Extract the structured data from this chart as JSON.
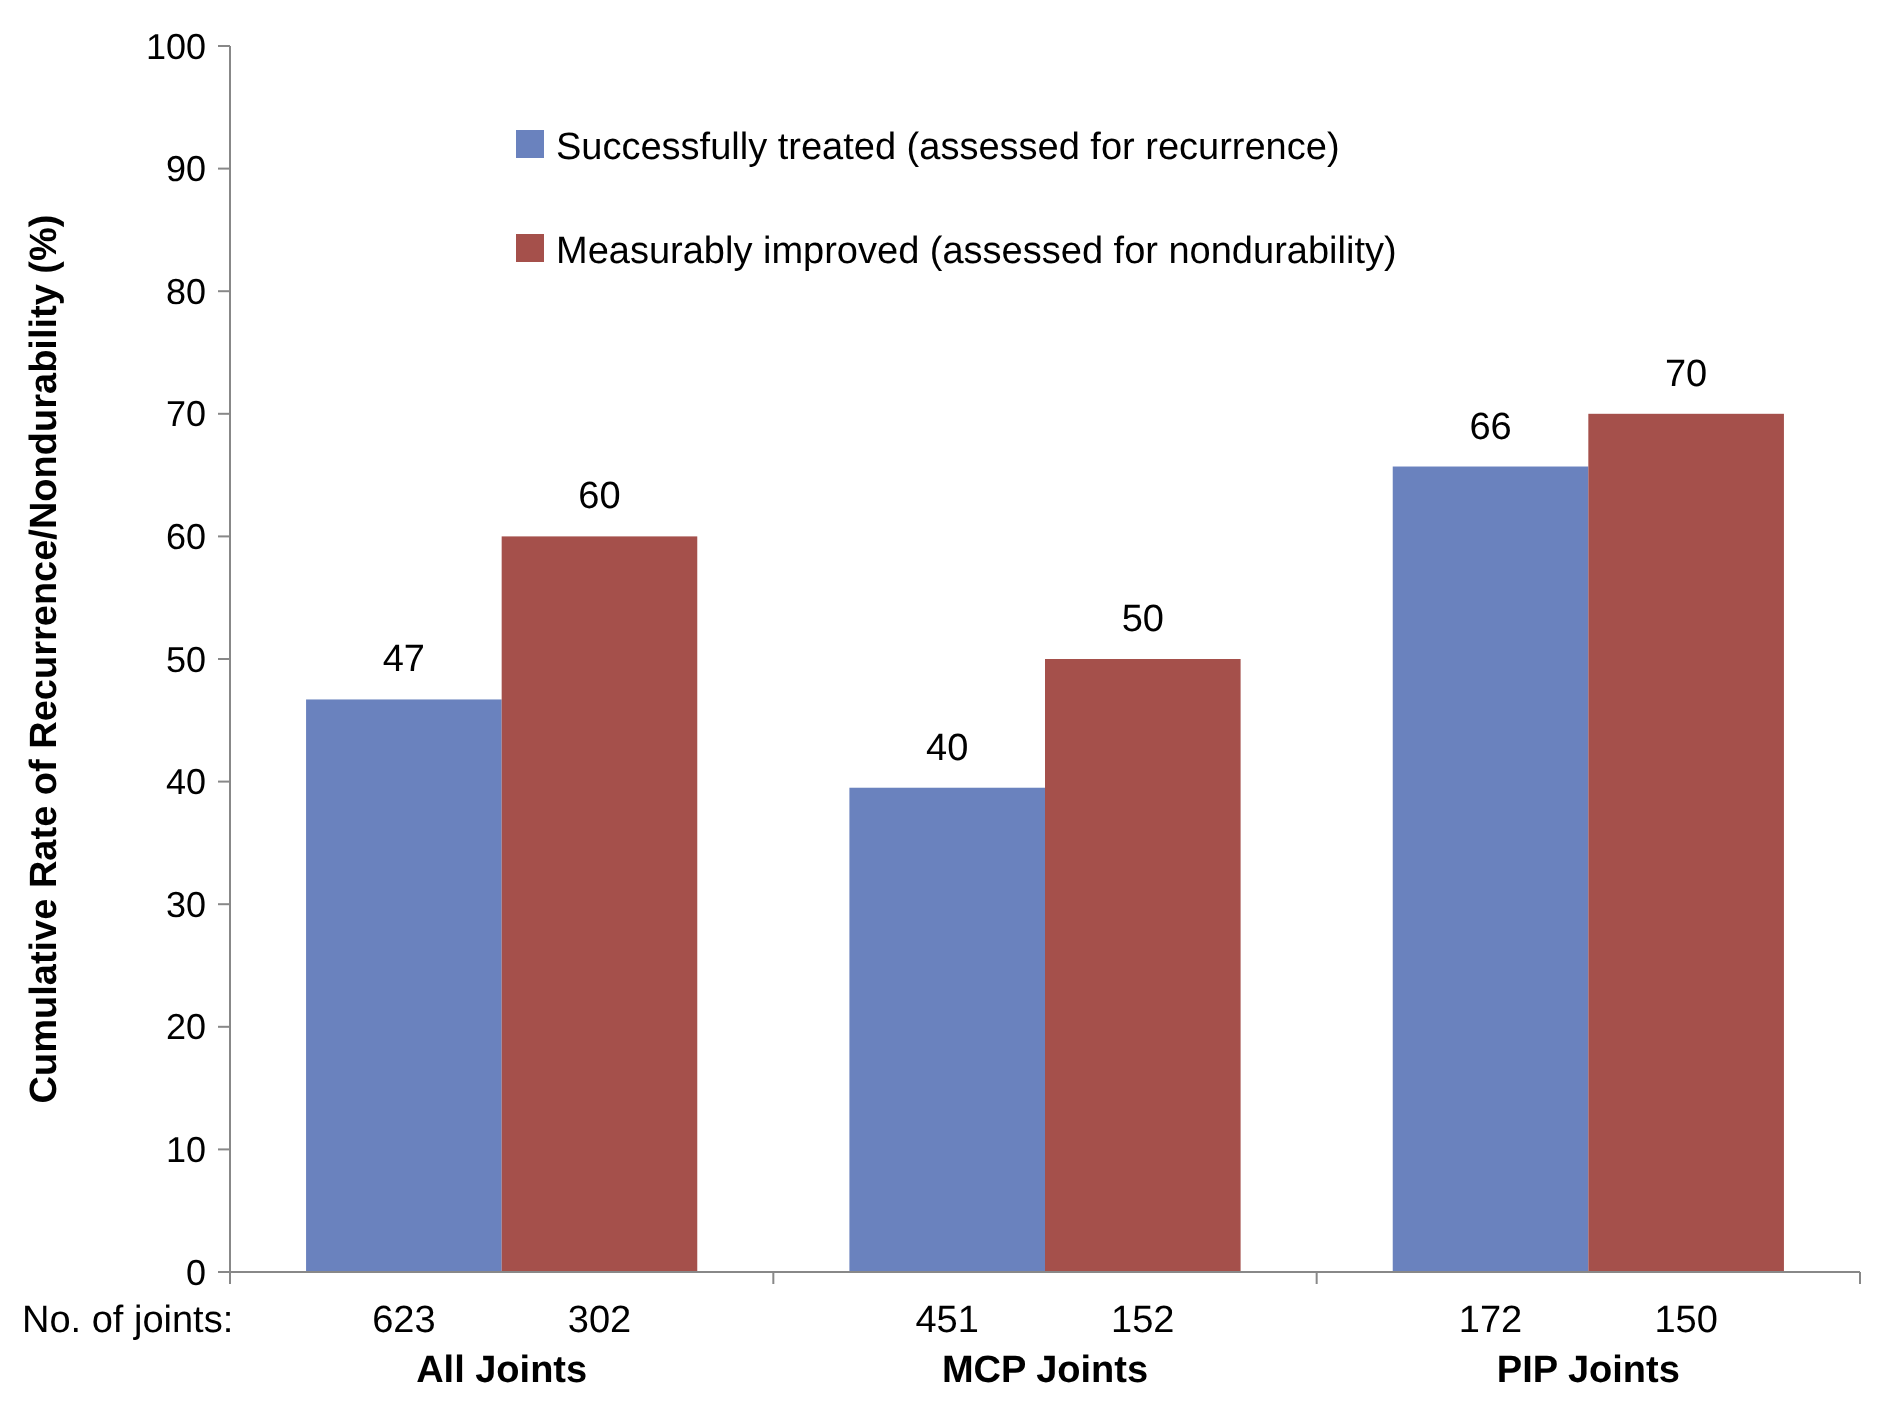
{
  "chart_data": {
    "type": "bar",
    "ylabel": "Cumulative Rate of Recurrence/Nondurability (%)",
    "categories": [
      "All Joints",
      "MCP Joints",
      "PIP Joints"
    ],
    "series": [
      {
        "name": "Successfully treated (assessed for recurrence)",
        "color": "#6a82be",
        "values": [
          46.7,
          39.5,
          65.7
        ],
        "value_labels": [
          "47",
          "40",
          "66"
        ]
      },
      {
        "name": "Measurably improved (assessed for nondurability)",
        "color": "#a5504b",
        "values": [
          60,
          50,
          70
        ],
        "value_labels": [
          "60",
          "50",
          "70"
        ]
      }
    ],
    "ylim": [
      0,
      100
    ],
    "yticks": [
      0,
      10,
      20,
      30,
      40,
      50,
      60,
      70,
      80,
      90,
      100
    ],
    "grid": false,
    "legend": "top",
    "annotations": [
      "No. of joints:",
      "623",
      "302",
      "451",
      "152",
      "172",
      "150"
    ]
  }
}
